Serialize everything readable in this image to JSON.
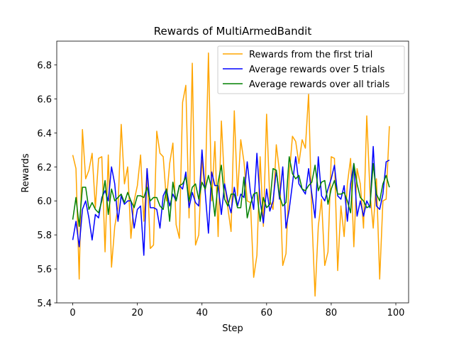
{
  "chart_data": {
    "type": "line",
    "title": "Rewards of MultiArmedBandit",
    "xlabel": "Step",
    "ylabel": "Rewards",
    "xlim": [
      -4.95,
      103.95
    ],
    "ylim": [
      5.4,
      6.94
    ],
    "xticks": [
      0,
      20,
      40,
      60,
      80,
      100
    ],
    "yticks": [
      5.4,
      5.6,
      5.8,
      6.0,
      6.2,
      6.4,
      6.6,
      6.8
    ],
    "grid": false,
    "legend_position": "upper right",
    "series": [
      {
        "name": "Rewards from the first trial",
        "color": "#ffa500",
        "values": [
          6.27,
          6.19,
          5.54,
          6.42,
          6.13,
          6.18,
          6.28,
          5.96,
          6.25,
          6.26,
          5.7,
          6.27,
          5.61,
          5.85,
          5.96,
          6.45,
          6.1,
          6.2,
          5.78,
          6.0,
          6.09,
          6.27,
          5.88,
          6.19,
          5.72,
          5.74,
          6.41,
          6.28,
          6.26,
          6.0,
          6.22,
          6.34,
          5.86,
          5.78,
          6.58,
          6.68,
          5.9,
          6.81,
          5.74,
          5.8,
          6.24,
          6.05,
          6.87,
          6.0,
          6.35,
          5.79,
          6.47,
          6.1,
          5.96,
          5.82,
          6.53,
          6.03,
          6.36,
          6.23,
          6.0,
          5.99,
          5.55,
          5.68,
          6.26,
          5.85,
          6.51,
          6.0,
          5.95,
          6.33,
          6.17,
          5.62,
          5.69,
          6.15,
          6.38,
          6.35,
          6.22,
          6.36,
          6.31,
          6.63,
          5.91,
          5.44,
          5.85,
          6.01,
          5.62,
          5.7,
          6.26,
          6.25,
          5.59,
          5.97,
          5.79,
          6.1,
          6.25,
          5.73,
          6.19,
          6.1,
          5.84,
          6.5,
          6.05,
          5.84,
          6.13,
          5.54,
          6.0,
          6.01,
          6.44
        ]
      },
      {
        "name": "Average rewards over 5 trials",
        "color": "#0000ff",
        "values": [
          5.77,
          5.88,
          5.73,
          5.95,
          6.0,
          5.9,
          5.77,
          5.92,
          5.9,
          6.02,
          6.06,
          6.0,
          6.2,
          6.1,
          5.88,
          6.03,
          5.98,
          6.0,
          6.0,
          5.84,
          5.95,
          5.97,
          5.68,
          6.19,
          5.96,
          5.96,
          5.95,
          5.84,
          6.03,
          6.07,
          5.97,
          6.04,
          6.0,
          6.09,
          6.07,
          6.17,
          5.96,
          6.05,
          5.99,
          5.97,
          6.3,
          6.05,
          5.81,
          6.17,
          6.09,
          6.09,
          5.92,
          6.1,
          6.0,
          5.93,
          6.08,
          5.97,
          6.04,
          6.02,
          6.23,
          6.05,
          5.95,
          6.28,
          6.0,
          5.87,
          6.07,
          5.94,
          6.0,
          6.18,
          6.01,
          6.2,
          5.84,
          5.95,
          6.1,
          6.26,
          6.1,
          6.07,
          6.04,
          6.19,
          6.04,
          5.9,
          6.26,
          6.03,
          6.0,
          6.07,
          6.13,
          6.21,
          6.03,
          6.01,
          6.09,
          5.88,
          6.1,
          6.22,
          5.91,
          6.0,
          5.91,
          6.0,
          5.96,
          6.32,
          5.97,
          5.95,
          6.04,
          6.23,
          6.24
        ]
      },
      {
        "name": "Average rewards over all trials",
        "color": "#008000",
        "values": [
          5.89,
          6.02,
          5.85,
          6.08,
          6.08,
          5.95,
          5.99,
          5.95,
          5.93,
          6.0,
          6.12,
          5.92,
          6.07,
          6.0,
          6.02,
          6.04,
          5.99,
          6.05,
          6.0,
          5.96,
          6.03,
          6.03,
          6.02,
          6.08,
          6.0,
          6.02,
          6.02,
          5.97,
          5.95,
          6.07,
          5.88,
          6.11,
          6.0,
          6.09,
          6.1,
          6.14,
          6.0,
          6.08,
          6.1,
          6.01,
          6.11,
          6.07,
          6.15,
          6.07,
          5.91,
          6.11,
          6.21,
          6.01,
          5.97,
          6.04,
          6.04,
          5.96,
          5.96,
          6.14,
          5.9,
          5.98,
          6.04,
          6.05,
          5.88,
          6.02,
          5.96,
          5.98,
          6.19,
          6.18,
          6.03,
          5.97,
          5.99,
          6.26,
          6.16,
          6.13,
          6.15,
          6.07,
          6.06,
          6.09,
          6.11,
          6.21,
          6.06,
          6.11,
          6.12,
          5.98,
          6.07,
          6.12,
          6.04,
          6.04,
          6.05,
          6.0,
          5.93,
          6.22,
          6.1,
          6.02,
          6.0,
          5.96,
          5.97,
          6.22,
          6.04,
          6.0,
          6.1,
          6.15,
          6.08
        ]
      }
    ]
  }
}
